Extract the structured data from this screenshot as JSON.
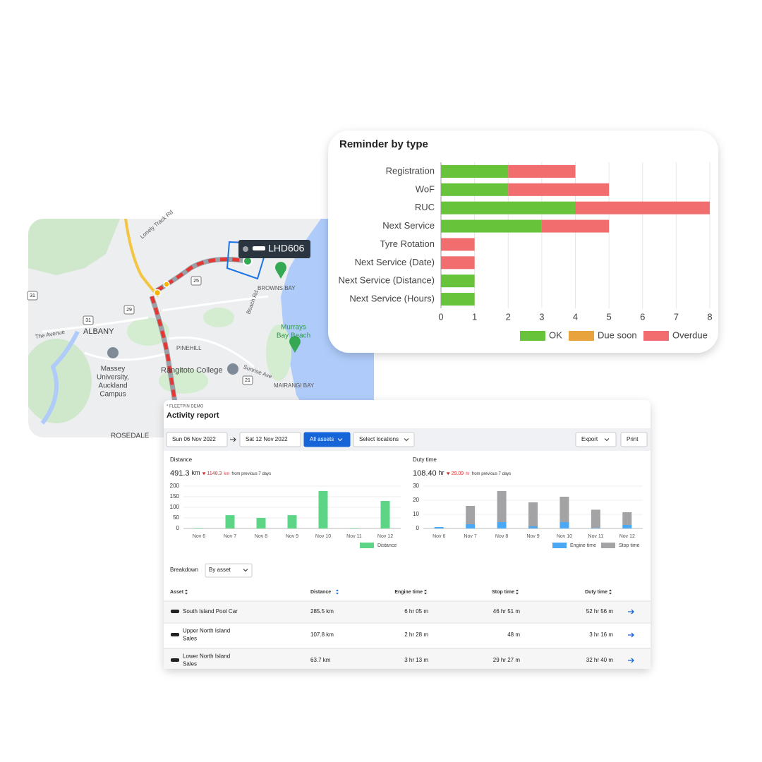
{
  "chart_data": [
    {
      "type": "bar",
      "orientation": "horizontal",
      "stacked": true,
      "title": "Reminder by type",
      "categories": [
        "Registration",
        "WoF",
        "RUC",
        "Next Service",
        "Tyre Rotation",
        "Next Service (Date)",
        "Next Service (Distance)",
        "Next Service (Hours)"
      ],
      "series": [
        {
          "name": "OK",
          "color": "#66c33a",
          "values": [
            2,
            2,
            4,
            3,
            0,
            0,
            1,
            1
          ]
        },
        {
          "name": "Due soon",
          "color": "#e8a33d",
          "values": [
            0,
            0,
            0,
            0,
            0,
            0,
            0,
            0
          ]
        },
        {
          "name": "Overdue",
          "color": "#f26d6d",
          "values": [
            2,
            3,
            4,
            2,
            1,
            1,
            0,
            0
          ]
        }
      ],
      "xlim": [
        0,
        8
      ],
      "xticks": [
        0,
        1,
        2,
        3,
        4,
        5,
        6,
        7,
        8
      ],
      "grid": true
    },
    {
      "type": "bar",
      "orientation": "vertical",
      "stacked": true,
      "title": "Distance",
      "categories": [
        "Nov 6",
        "Nov 7",
        "Nov 8",
        "Nov 9",
        "Nov 10",
        "Nov 11",
        "Nov 12"
      ],
      "series": [
        {
          "name": "Distance",
          "color": "#5cd686",
          "values": [
            2,
            63,
            50,
            63,
            177,
            2,
            130
          ]
        }
      ],
      "ylim": [
        0,
        200
      ],
      "yticks": [
        0,
        50,
        100,
        150,
        200
      ],
      "grid": true
    },
    {
      "type": "bar",
      "orientation": "vertical",
      "stacked": true,
      "title": "Duty time",
      "categories": [
        "Nov 6",
        "Nov 7",
        "Nov 8",
        "Nov 9",
        "Nov 10",
        "Nov 11",
        "Nov 12"
      ],
      "series": [
        {
          "name": "Engine time",
          "color": "#4aa8f5",
          "values": [
            1,
            3,
            4.5,
            1.5,
            4.5,
            0.3,
            2.5
          ]
        },
        {
          "name": "Stop time",
          "color": "#a3a3a6",
          "values": [
            0,
            13,
            22,
            17,
            18,
            13,
            9
          ]
        }
      ],
      "ylim": [
        0,
        30
      ],
      "yticks": [
        0,
        10,
        20,
        30
      ],
      "grid": true
    }
  ],
  "map": {
    "vehicle": "LHD606",
    "labels": [
      "BROWNS BAY",
      "ALBANY",
      "PINEHILL",
      "Rangitoto College",
      "MAIRANGI BAY",
      "Sunrise Ave",
      "Beach Rd",
      "The Avenue",
      "Lonely Track Rd",
      "ROSEDALE"
    ],
    "murrays": [
      "Murrays",
      "Bay Beach"
    ],
    "massey": [
      "Massey",
      "University,",
      "Auckland",
      "Campus"
    ],
    "shields": [
      "31",
      "31",
      "29",
      "25",
      "21"
    ]
  },
  "report": {
    "org": "* FLEETPIN DEMO",
    "title": "Activity report",
    "from": "Sun 06 Nov 2022",
    "to": "Sat 12 Nov 2022",
    "buttons": [
      "All assets",
      "Select locations",
      "Export",
      "Print"
    ],
    "distance": {
      "value": "491.3",
      "unit": "km",
      "change": "1148.3",
      "change_unit": "km",
      "note": "from previous 7 days"
    },
    "duty": {
      "value": "108.40",
      "unit": "hr",
      "change": "29.09",
      "change_unit": "hr",
      "note": "from previous 7 days"
    },
    "breakdown": "Breakdown",
    "breakdown_by": "By asset",
    "table": {
      "headers": [
        "Asset",
        "Distance",
        "Engine time",
        "Stop time",
        "Duty time"
      ],
      "rows": [
        [
          [
            "South Island Pool Car"
          ],
          "285.5 km",
          "6 hr 05 m",
          "46 hr 51 m",
          "52 hr 56 m"
        ],
        [
          [
            "Upper North Island",
            "Sales"
          ],
          "107.8 km",
          "2 hr 28 m",
          "48 m",
          "3 hr 16 m"
        ],
        [
          [
            "Lower North Island",
            "Sales"
          ],
          "63.7 km",
          "3 hr 13 m",
          "29 hr 27 m",
          "32 hr 40 m"
        ]
      ]
    }
  }
}
